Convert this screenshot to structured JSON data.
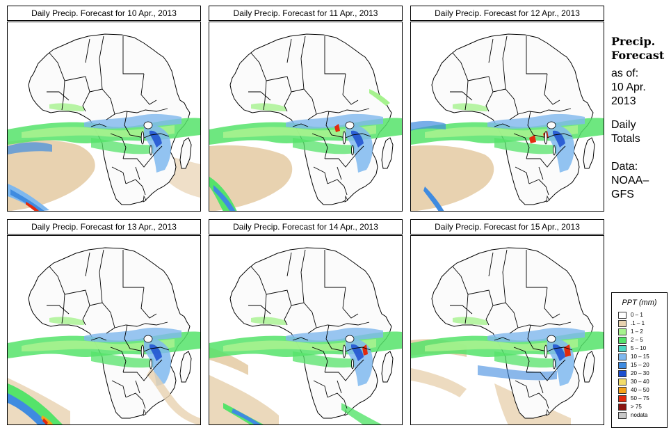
{
  "panels": [
    {
      "title": "Daily Precip. Forecast for  10 Apr., 2013"
    },
    {
      "title": "Daily Precip. Forecast for  11 Apr., 2013"
    },
    {
      "title": "Daily Precip. Forecast for  12 Apr., 2013"
    },
    {
      "title": "Daily Precip. Forecast for  13 Apr., 2013"
    },
    {
      "title": "Daily Precip. Forecast for  14 Apr., 2013"
    },
    {
      "title": "Daily Precip. Forecast for  15 Apr., 2013"
    }
  ],
  "side": {
    "heading_line1": "Precip.",
    "heading_line2": "Forecast",
    "as_of_label": "as of:",
    "date_line1": "10 Apr.",
    "date_line2": "2013",
    "totals_line1": "Daily",
    "totals_line2": "Totals",
    "data_line1": "Data:",
    "data_line2": "NOAA–",
    "data_line3": "GFS"
  },
  "legend": {
    "title": "PPT (mm)",
    "items": [
      {
        "label": "0 – 1",
        "color": "#ffffff"
      },
      {
        "label": ".1 – 1",
        "color": "#e8d2b0"
      },
      {
        "label": "1 – 2",
        "color": "#a6f28e"
      },
      {
        "label": "2 – 5",
        "color": "#55e36a"
      },
      {
        "label": "5 – 10",
        "color": "#4fd6c0"
      },
      {
        "label": "10 – 15",
        "color": "#7fb8ee"
      },
      {
        "label": "15 – 20",
        "color": "#3f8be0"
      },
      {
        "label": "20 – 30",
        "color": "#1c4fd0"
      },
      {
        "label": "30 – 40",
        "color": "#f2dc6a"
      },
      {
        "label": "40 – 50",
        "color": "#f5a21a"
      },
      {
        "label": "50 – 75",
        "color": "#e22a0e"
      },
      {
        "label": "> 75",
        "color": "#8a1410"
      },
      {
        "label": "nodata",
        "color": "#c8c8c8"
      }
    ]
  }
}
